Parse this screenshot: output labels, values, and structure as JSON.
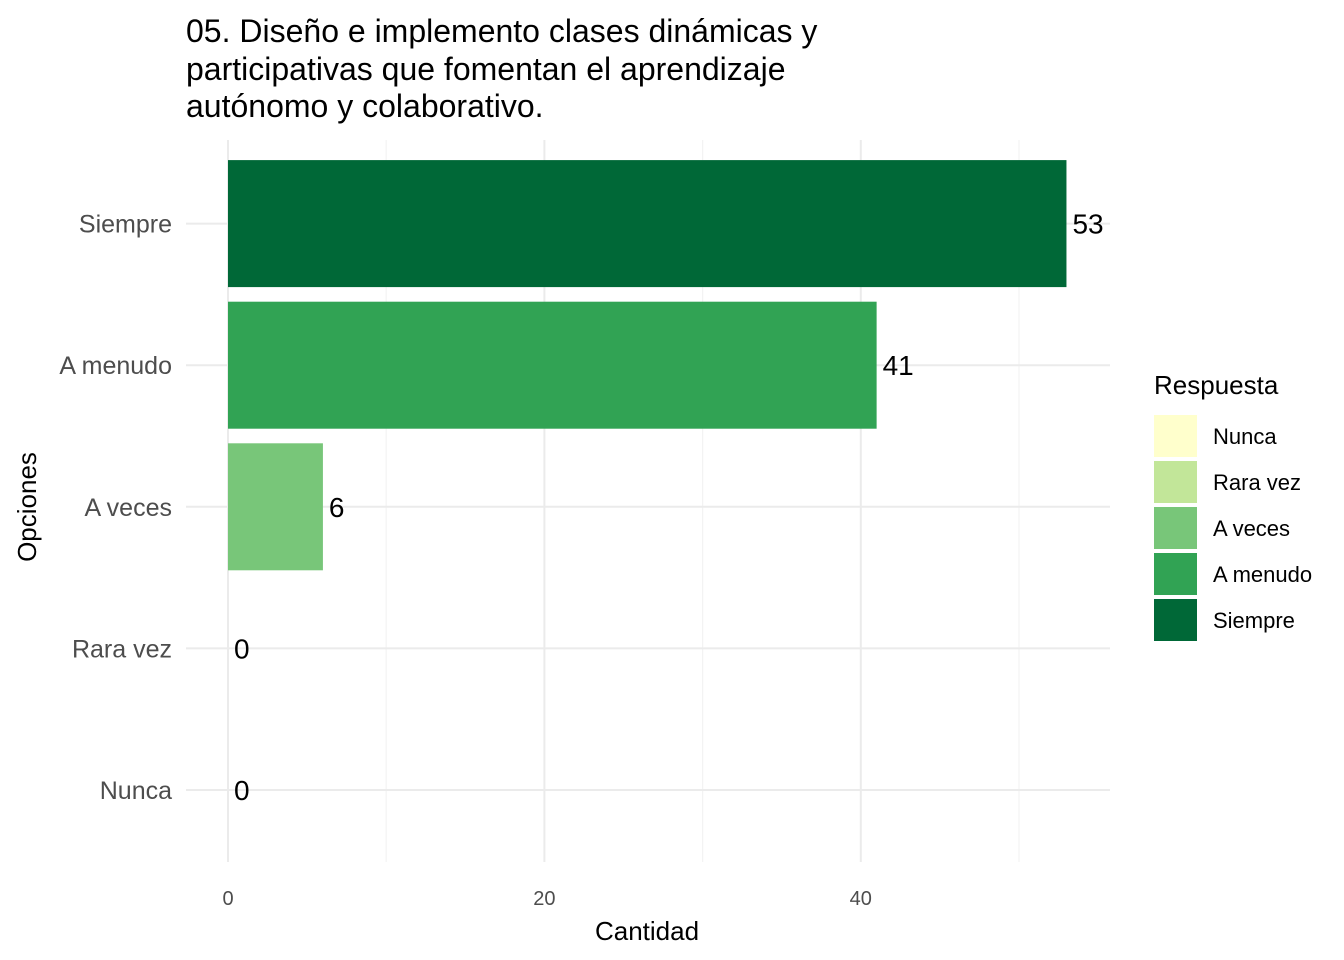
{
  "chart_data": {
    "type": "bar",
    "orientation": "horizontal",
    "title_lines": [
      "05. Diseño e implemento clases dinámicas y",
      "participativas que fomentan el aprendizaje",
      "autónomo y colaborativo."
    ],
    "xlabel": "Cantidad",
    "ylabel": "Opciones",
    "categories": [
      "Nunca",
      "Rara vez",
      "A veces",
      "A menudo",
      "Siempre"
    ],
    "values": [
      0,
      0,
      6,
      41,
      53
    ],
    "data_labels": [
      "0",
      "0",
      "6",
      "41",
      "53"
    ],
    "colors": [
      "#ffffcc",
      "#c2e699",
      "#78c679",
      "#31a354",
      "#006837"
    ],
    "xlim": [
      0,
      55.65
    ],
    "xticks": [
      0,
      20,
      40
    ],
    "xtick_labels": [
      "0",
      "20",
      "40"
    ],
    "grid": true,
    "legend": {
      "title": "Respuesta",
      "position": "right",
      "entries": [
        "Nunca",
        "Rara vez",
        "A veces",
        "A menudo",
        "Siempre"
      ]
    }
  }
}
